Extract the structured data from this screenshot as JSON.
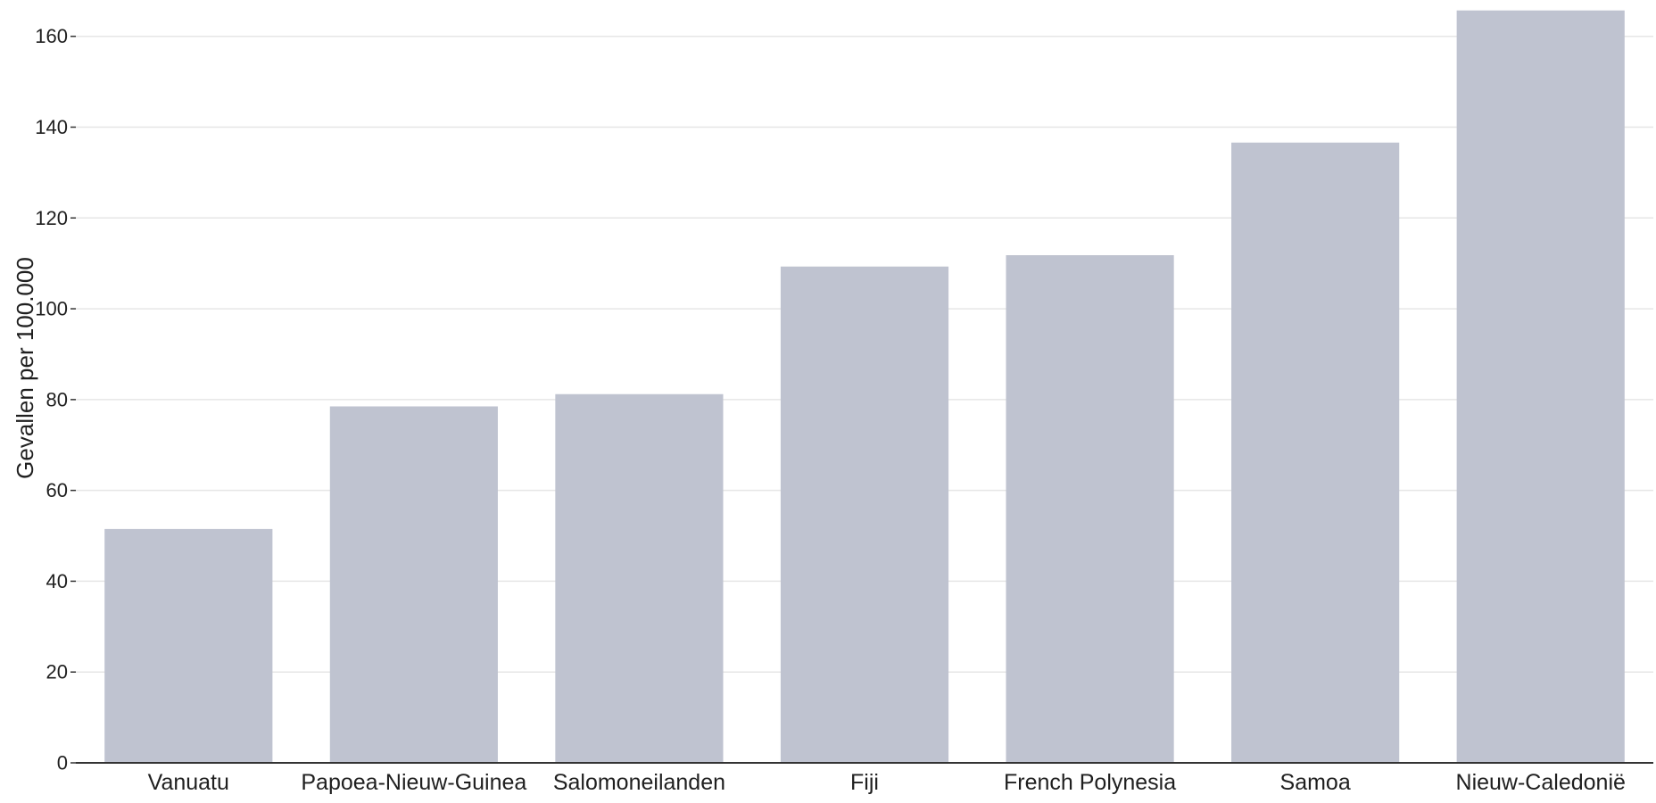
{
  "chart_data": {
    "type": "bar",
    "categories": [
      "Vanuatu",
      "Papoea-Nieuw-Guinea",
      "Salomoneilanden",
      "Fiji",
      "French Polynesia",
      "Samoa",
      "Nieuw-Caledonië"
    ],
    "values": [
      51.5,
      78.5,
      81.2,
      109.3,
      111.8,
      136.6,
      165.7
    ],
    "title": "",
    "xlabel": "",
    "ylabel": "Gevallen per 100.000",
    "ylim": [
      0,
      168
    ],
    "yticks": [
      0,
      20,
      40,
      60,
      80,
      100,
      120,
      140,
      160
    ],
    "grid": true,
    "bar_color": "#bfc3d0",
    "axis_color": "#333333",
    "grid_color": "#e6e6e6"
  }
}
